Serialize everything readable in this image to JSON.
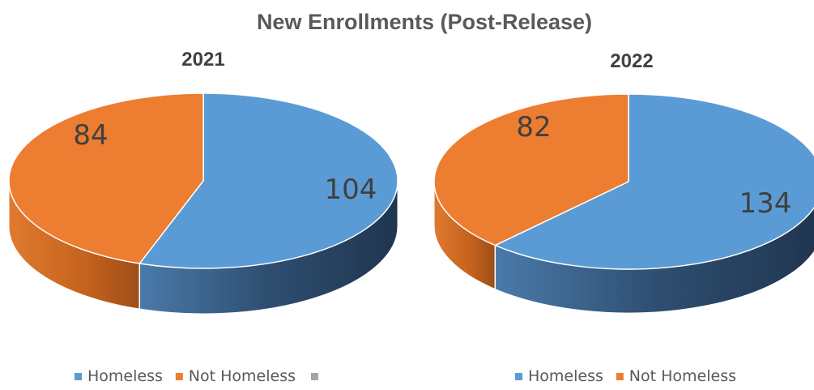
{
  "chart_data": {
    "type": "pie",
    "title": "New Enrollments (Post-Release)",
    "charts": [
      {
        "subtitle": "2021",
        "slices": [
          {
            "label": "Homeless",
            "value": 104,
            "color": "#5B9BD5",
            "side_color": "#2E4C6B"
          },
          {
            "label": "Not Homeless",
            "value": 84,
            "color": "#ED7D31",
            "side_color": "#B55A1C"
          }
        ],
        "legend": [
          "Homeless",
          "Not Homeless",
          ""
        ],
        "legend_extra_color": "#A5A5A5"
      },
      {
        "subtitle": "2022",
        "slices": [
          {
            "label": "Homeless",
            "value": 134,
            "color": "#5B9BD5",
            "side_color": "#2E4C6B"
          },
          {
            "label": "Not Homeless",
            "value": 82,
            "color": "#ED7D31",
            "side_color": "#B55A1C"
          }
        ],
        "legend": [
          "Homeless",
          "Not Homeless"
        ]
      }
    ],
    "legend_position": "bottom",
    "style": "3d-pie"
  }
}
